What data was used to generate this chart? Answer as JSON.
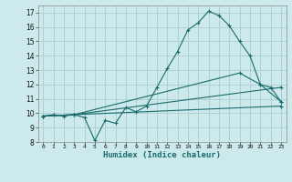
{
  "title": "",
  "xlabel": "Humidex (Indice chaleur)",
  "ylabel": "",
  "xlim": [
    -0.5,
    23.5
  ],
  "ylim": [
    8,
    17.5
  ],
  "xticks": [
    0,
    1,
    2,
    3,
    4,
    5,
    6,
    7,
    8,
    9,
    10,
    11,
    12,
    13,
    14,
    15,
    16,
    17,
    18,
    19,
    20,
    21,
    22,
    23
  ],
  "yticks": [
    8,
    9,
    10,
    11,
    12,
    13,
    14,
    15,
    16,
    17
  ],
  "bg_color": "#cce9ec",
  "grid_color": "#aacdd1",
  "line_color": "#1a6b6b",
  "lines": [
    {
      "x": [
        0,
        1,
        2,
        3,
        4,
        5,
        6,
        7,
        8,
        9,
        10,
        11,
        12,
        13,
        14,
        15,
        16,
        17,
        18,
        19,
        20,
        21,
        22,
        23
      ],
      "y": [
        9.8,
        9.9,
        9.8,
        9.9,
        9.7,
        8.1,
        9.5,
        9.3,
        10.4,
        10.1,
        10.5,
        11.8,
        13.1,
        14.3,
        15.8,
        16.3,
        17.1,
        16.8,
        16.1,
        15.0,
        14.0,
        12.0,
        11.8,
        10.8
      ]
    },
    {
      "x": [
        0,
        3,
        23
      ],
      "y": [
        9.8,
        9.9,
        11.8
      ]
    },
    {
      "x": [
        0,
        3,
        19,
        21,
        23
      ],
      "y": [
        9.8,
        9.9,
        12.8,
        12.0,
        10.8
      ]
    },
    {
      "x": [
        0,
        3,
        23
      ],
      "y": [
        9.8,
        9.9,
        10.5
      ]
    }
  ]
}
